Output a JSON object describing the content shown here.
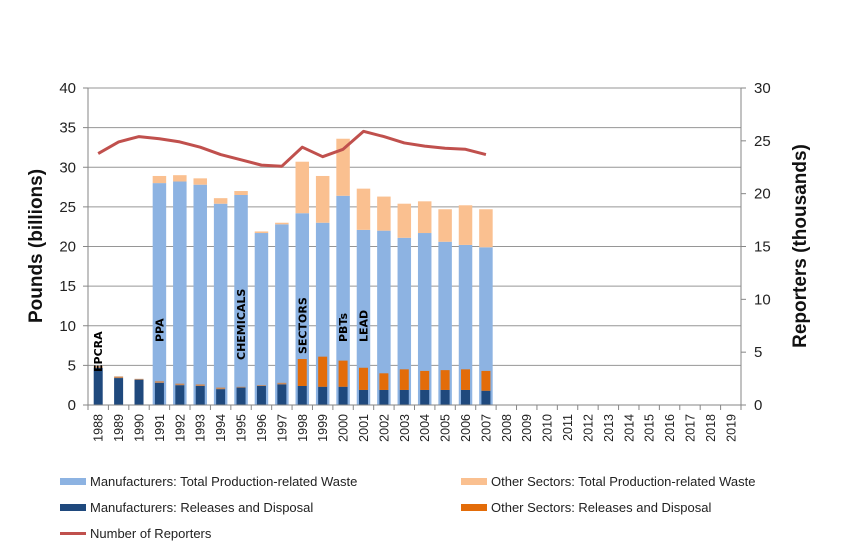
{
  "chart_data": {
    "type": "bar",
    "title": "",
    "xlabel": "",
    "ylabel": "Pounds (billions)",
    "y2label": "Reporters (thousands)",
    "ylim": [
      0,
      40
    ],
    "y2lim": [
      0,
      30
    ],
    "yticks": [
      "0",
      "5",
      "10",
      "15",
      "20",
      "25",
      "30",
      "35",
      "40"
    ],
    "y2ticks": [
      "0",
      "5",
      "10",
      "15",
      "20",
      "25",
      "30"
    ],
    "grid": true,
    "legend_position": "bottom",
    "categories": [
      "1988",
      "1989",
      "1990",
      "1991",
      "1992",
      "1993",
      "1994",
      "1995",
      "1996",
      "1997",
      "1998",
      "1999",
      "2000",
      "2001",
      "2002",
      "2003",
      "2004",
      "2005",
      "2006",
      "2007",
      "2008",
      "2009",
      "2010",
      "2011",
      "2012",
      "2013",
      "2014",
      "2015",
      "2016",
      "2017",
      "2018",
      "2019"
    ],
    "series": [
      {
        "name": "Manufacturers: Total Production-related Waste",
        "type": "bar",
        "axis": "left",
        "color": "#8db3e2",
        "values": [
          null,
          null,
          null,
          28.0,
          28.2,
          27.8,
          25.4,
          26.5,
          21.7,
          22.8,
          24.2,
          23.0,
          26.4,
          22.1,
          22.0,
          21.1,
          21.7,
          20.6,
          20.2,
          19.9,
          null,
          null,
          null,
          null,
          null,
          null,
          null,
          null,
          null,
          null,
          null,
          null
        ]
      },
      {
        "name": "Other Sectors: Total Production-related Waste",
        "type": "bar",
        "axis": "left",
        "color": "#fac090",
        "values": [
          null,
          null,
          null,
          0.9,
          0.8,
          0.8,
          0.7,
          0.5,
          0.2,
          0.2,
          6.5,
          5.9,
          7.2,
          5.2,
          4.3,
          4.3,
          4.0,
          4.1,
          5.0,
          4.8,
          null,
          null,
          null,
          null,
          null,
          null,
          null,
          null,
          null,
          null,
          null,
          null
        ]
      },
      {
        "name": "Manufacturers: Releases and Disposal",
        "type": "bar",
        "axis": "left",
        "color": "#1f497d",
        "values": [
          4.7,
          3.4,
          3.2,
          2.8,
          2.5,
          2.4,
          2.0,
          2.2,
          2.4,
          2.6,
          2.4,
          2.3,
          2.3,
          1.9,
          1.9,
          1.9,
          1.9,
          1.9,
          1.9,
          1.8,
          null,
          null,
          null,
          null,
          null,
          null,
          null,
          null,
          null,
          null,
          null,
          null
        ]
      },
      {
        "name": "Other Sectors: Releases and Disposal",
        "type": "bar",
        "axis": "left",
        "color": "#e36c09",
        "values": [
          0.2,
          0.2,
          0.1,
          0.2,
          0.2,
          0.2,
          0.2,
          0.1,
          0.1,
          0.2,
          3.4,
          3.8,
          3.3,
          2.8,
          2.1,
          2.6,
          2.4,
          2.5,
          2.6,
          2.5,
          null,
          null,
          null,
          null,
          null,
          null,
          null,
          null,
          null,
          null,
          null,
          null
        ]
      },
      {
        "name": "Number of Reporters",
        "type": "line",
        "axis": "right",
        "color": "#c0504d",
        "values": [
          23.8,
          24.9,
          25.4,
          25.2,
          24.9,
          24.4,
          23.7,
          23.2,
          22.7,
          22.6,
          24.4,
          23.5,
          24.2,
          25.9,
          25.4,
          24.8,
          24.5,
          24.3,
          24.2,
          23.7,
          null,
          null,
          null,
          null,
          null,
          null,
          null,
          null,
          null,
          null,
          null,
          null
        ]
      }
    ],
    "annotations": [
      {
        "text": "EPCRA",
        "category": "1988"
      },
      {
        "text": "PPA",
        "category": "1991"
      },
      {
        "text": "CHEMICALS",
        "category": "1995"
      },
      {
        "text": "SECTORS",
        "category": "1998"
      },
      {
        "text": "PBTs",
        "category": "2000"
      },
      {
        "text": "LEAD",
        "category": "2001"
      }
    ]
  },
  "legend": {
    "items": [
      {
        "label": "Manufacturers: Total Production-related Waste",
        "color": "#8db3e2",
        "kind": "bar"
      },
      {
        "label": "Other Sectors: Total Production-related Waste",
        "color": "#fac090",
        "kind": "bar"
      },
      {
        "label": "Manufacturers: Releases and Disposal",
        "color": "#1f497d",
        "kind": "bar"
      },
      {
        "label": "Other Sectors: Releases and Disposal",
        "color": "#e36c09",
        "kind": "bar"
      },
      {
        "label": "Number of Reporters",
        "color": "#c0504d",
        "kind": "line"
      }
    ]
  },
  "colors": {
    "gridline": "#969696",
    "axis": "#868686"
  }
}
